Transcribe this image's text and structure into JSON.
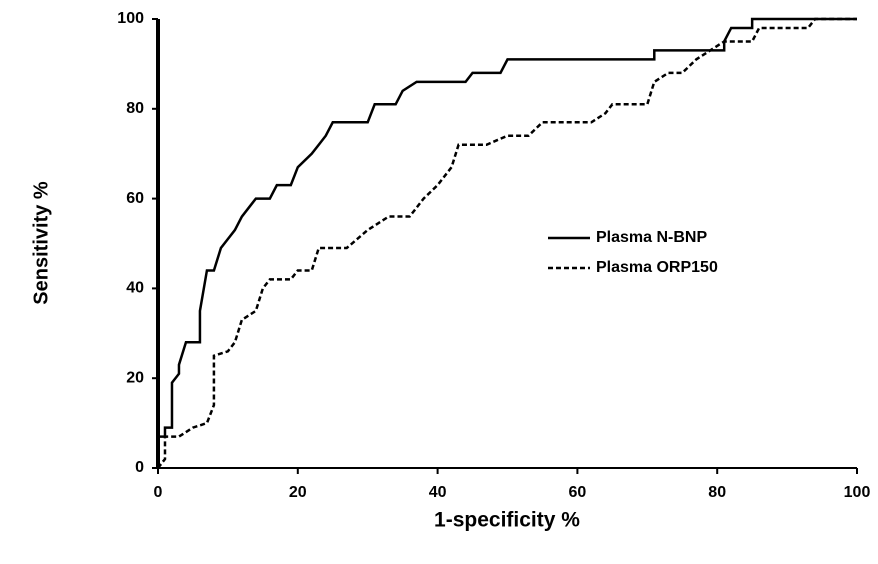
{
  "chart_data": {
    "type": "line",
    "xlabel": "1-specificity %",
    "ylabel": "Sensitivity %",
    "xlim": [
      0,
      100
    ],
    "xticks": [
      0,
      20,
      40,
      60,
      80,
      100
    ],
    "ylim": [
      0,
      100
    ],
    "yticks": [
      0,
      20,
      40,
      60,
      80,
      100
    ],
    "grid": false,
    "legend": "right",
    "series": [
      {
        "name": "Plasma N-BNP",
        "color": "#000000",
        "line_style": "solid",
        "x": [
          0,
          0,
          1,
          1,
          2,
          2,
          3,
          3,
          4,
          6,
          6,
          7,
          8,
          9,
          10,
          11,
          12,
          13,
          14,
          16,
          17,
          19,
          20,
          22,
          23,
          24,
          25,
          30,
          31,
          34,
          35,
          37,
          44,
          45,
          49,
          50,
          71,
          71,
          81,
          81,
          82,
          85,
          85,
          100
        ],
        "values": [
          0,
          7,
          7,
          9,
          9,
          19,
          21,
          23,
          28,
          28,
          35,
          44,
          44,
          49,
          51,
          53,
          56,
          58,
          60,
          60,
          63,
          63,
          67,
          70,
          72,
          74,
          77,
          77,
          81,
          81,
          84,
          86,
          86,
          88,
          88,
          91,
          91,
          93,
          93,
          95,
          98,
          98,
          100,
          100
        ]
      },
      {
        "name": "Plasma ORP150",
        "color": "#000000",
        "line_style": "dashed",
        "x": [
          0,
          1,
          1,
          3,
          5,
          7,
          8,
          8,
          10,
          11,
          12,
          14,
          15,
          16,
          19,
          20,
          22,
          23,
          27,
          30,
          33,
          36,
          38,
          40,
          42,
          43,
          47,
          50,
          53,
          55,
          62,
          64,
          65,
          70,
          71,
          73,
          75,
          77,
          79,
          81,
          85,
          86,
          93,
          94,
          100
        ],
        "values": [
          0,
          2,
          7,
          7,
          9,
          10,
          14,
          25,
          26,
          28,
          33,
          35,
          40,
          42,
          42,
          44,
          44,
          49,
          49,
          53,
          56,
          56,
          60,
          63,
          67,
          72,
          72,
          74,
          74,
          77,
          77,
          79,
          81,
          81,
          86,
          88,
          88,
          91,
          93,
          95,
          95,
          98,
          98,
          100,
          100
        ]
      }
    ]
  }
}
